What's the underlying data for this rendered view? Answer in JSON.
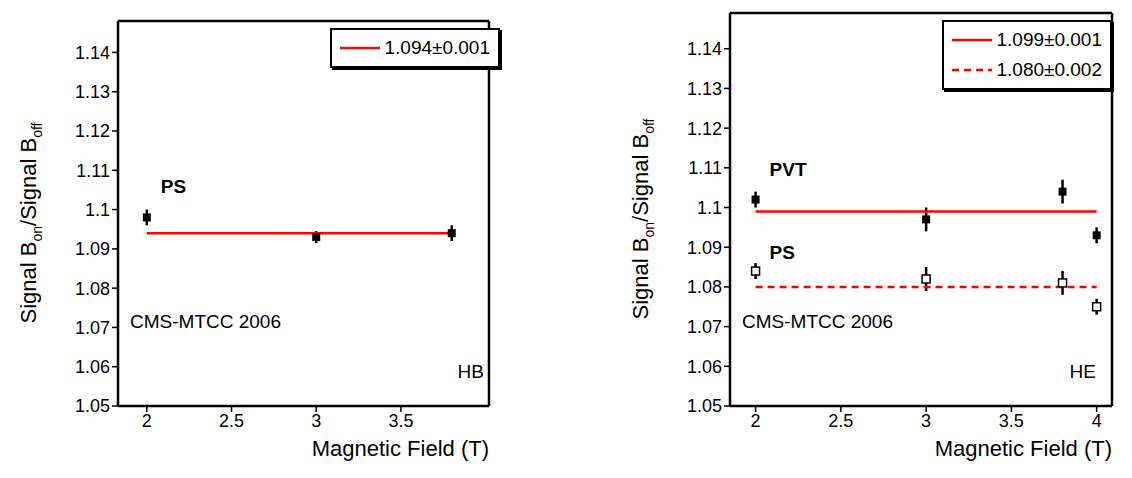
{
  "chart_data": [
    {
      "type": "scatter",
      "xlabel": "Magnetic Field (T)",
      "ylabel": [
        "Signal B",
        "on",
        "/Signal B",
        "off"
      ],
      "xlim": [
        1.83,
        4.02
      ],
      "xticks": [
        2,
        2.5,
        3,
        3.5
      ],
      "ylim": [
        1.05,
        1.148
      ],
      "yticks": [
        1.05,
        1.06,
        1.07,
        1.08,
        1.09,
        1.1,
        1.11,
        1.12,
        1.13,
        1.14
      ],
      "legend": "upper right",
      "annotations": [
        "CMS-MTCC 2006",
        "HB"
      ],
      "series": [
        {
          "name": "PS",
          "type": "scatter",
          "marker": "square",
          "color": "#000000",
          "x": [
            2,
            3,
            3.8
          ],
          "values": [
            1.098,
            1.093,
            1.094
          ],
          "errors": [
            0.002,
            0.0015,
            0.002
          ]
        },
        {
          "name": "1.094±0.001",
          "type": "line",
          "line_style": "solid",
          "color": "#ff0000",
          "x": [
            2,
            3.8
          ],
          "values": [
            1.094,
            1.094
          ]
        }
      ]
    },
    {
      "type": "scatter",
      "xlabel": "Magnetic Field (T)",
      "ylabel": [
        "Signal B",
        "on",
        "/Signal B",
        "off"
      ],
      "xlim": [
        1.85,
        4.09
      ],
      "xticks": [
        2,
        2.5,
        3,
        3.5,
        4
      ],
      "ylim": [
        1.05,
        1.149
      ],
      "yticks": [
        1.05,
        1.06,
        1.07,
        1.08,
        1.09,
        1.1,
        1.11,
        1.12,
        1.13,
        1.14
      ],
      "legend": "upper right",
      "annotations": [
        "CMS-MTCC 2006",
        "HE"
      ],
      "series": [
        {
          "name": "PVT",
          "type": "scatter",
          "marker": "square",
          "color": "#000000",
          "x": [
            2,
            3,
            3.8,
            4
          ],
          "values": [
            1.102,
            1.097,
            1.104,
            1.093
          ],
          "errors": [
            0.002,
            0.003,
            0.003,
            0.002
          ]
        },
        {
          "name": "PS",
          "type": "scatter",
          "marker": "open_square",
          "color": "#000000",
          "x": [
            2,
            3,
            3.8,
            4
          ],
          "values": [
            1.084,
            1.082,
            1.081,
            1.075
          ],
          "errors": [
            0.002,
            0.003,
            0.003,
            0.002
          ]
        },
        {
          "name": "1.099±0.001",
          "type": "line",
          "line_style": "solid",
          "color": "#ff0000",
          "x": [
            2,
            4
          ],
          "values": [
            1.099,
            1.099
          ]
        },
        {
          "name": "1.080±0.002",
          "type": "line",
          "line_style": "dashed",
          "color": "#ff0000",
          "x": [
            2,
            4
          ],
          "values": [
            1.08,
            1.08
          ]
        }
      ]
    }
  ]
}
